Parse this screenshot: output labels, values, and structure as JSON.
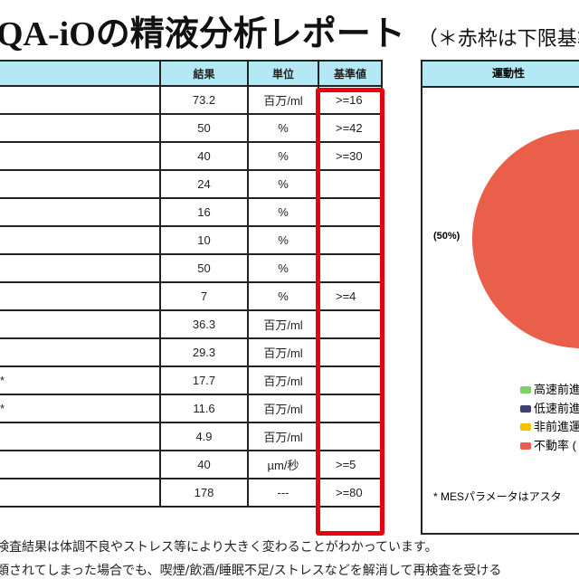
{
  "title": "QA-iOの精液分析レポート",
  "title_note": "（＊赤枠は下限基準",
  "table": {
    "headers": [
      "",
      "結果",
      "単位",
      "基準値"
    ],
    "rows": [
      [
        "",
        "73.2",
        "百万/ml",
        ">=16"
      ],
      [
        "",
        "50",
        "%",
        ">=42"
      ],
      [
        "",
        "40",
        "%",
        ">=30"
      ],
      [
        "",
        "24",
        "%",
        ""
      ],
      [
        "",
        "16",
        "%",
        ""
      ],
      [
        "",
        "10",
        "%",
        ""
      ],
      [
        "",
        "50",
        "%",
        ""
      ],
      [
        "",
        "7",
        "%",
        ">=4"
      ],
      [
        "",
        "36.3",
        "百万/ml",
        ""
      ],
      [
        "",
        "29.3",
        "百万/ml",
        ""
      ],
      [
        "*",
        "17.7",
        "百万/ml",
        ""
      ],
      [
        "*",
        "11.6",
        "百万/ml",
        ""
      ],
      [
        "",
        "4.9",
        "百万/ml",
        ""
      ],
      [
        "",
        "40",
        "µm/秒",
        ">=5"
      ],
      [
        "",
        "178",
        "---",
        ">=80"
      ]
    ]
  },
  "chart": {
    "header": "運動性",
    "pie_label": "(50%)",
    "legend": [
      {
        "label": "高速前進",
        "color": "#7dd36b"
      },
      {
        "label": "低速前進",
        "color": "#3b4170"
      },
      {
        "label": "非前進運",
        "color": "#f0c400"
      },
      {
        "label": "不動率 (",
        "color": "#ea5f49"
      }
    ],
    "note": "* MESパラメータはアスタ"
  },
  "footer": [
    "検査結果は体調不良やストレス等により大きく変わることがわかっています。",
    "類されてしまった場合でも、喫煙/飲酒/睡眠不足/ストレスなどを解消して再検査を受ける"
  ]
}
